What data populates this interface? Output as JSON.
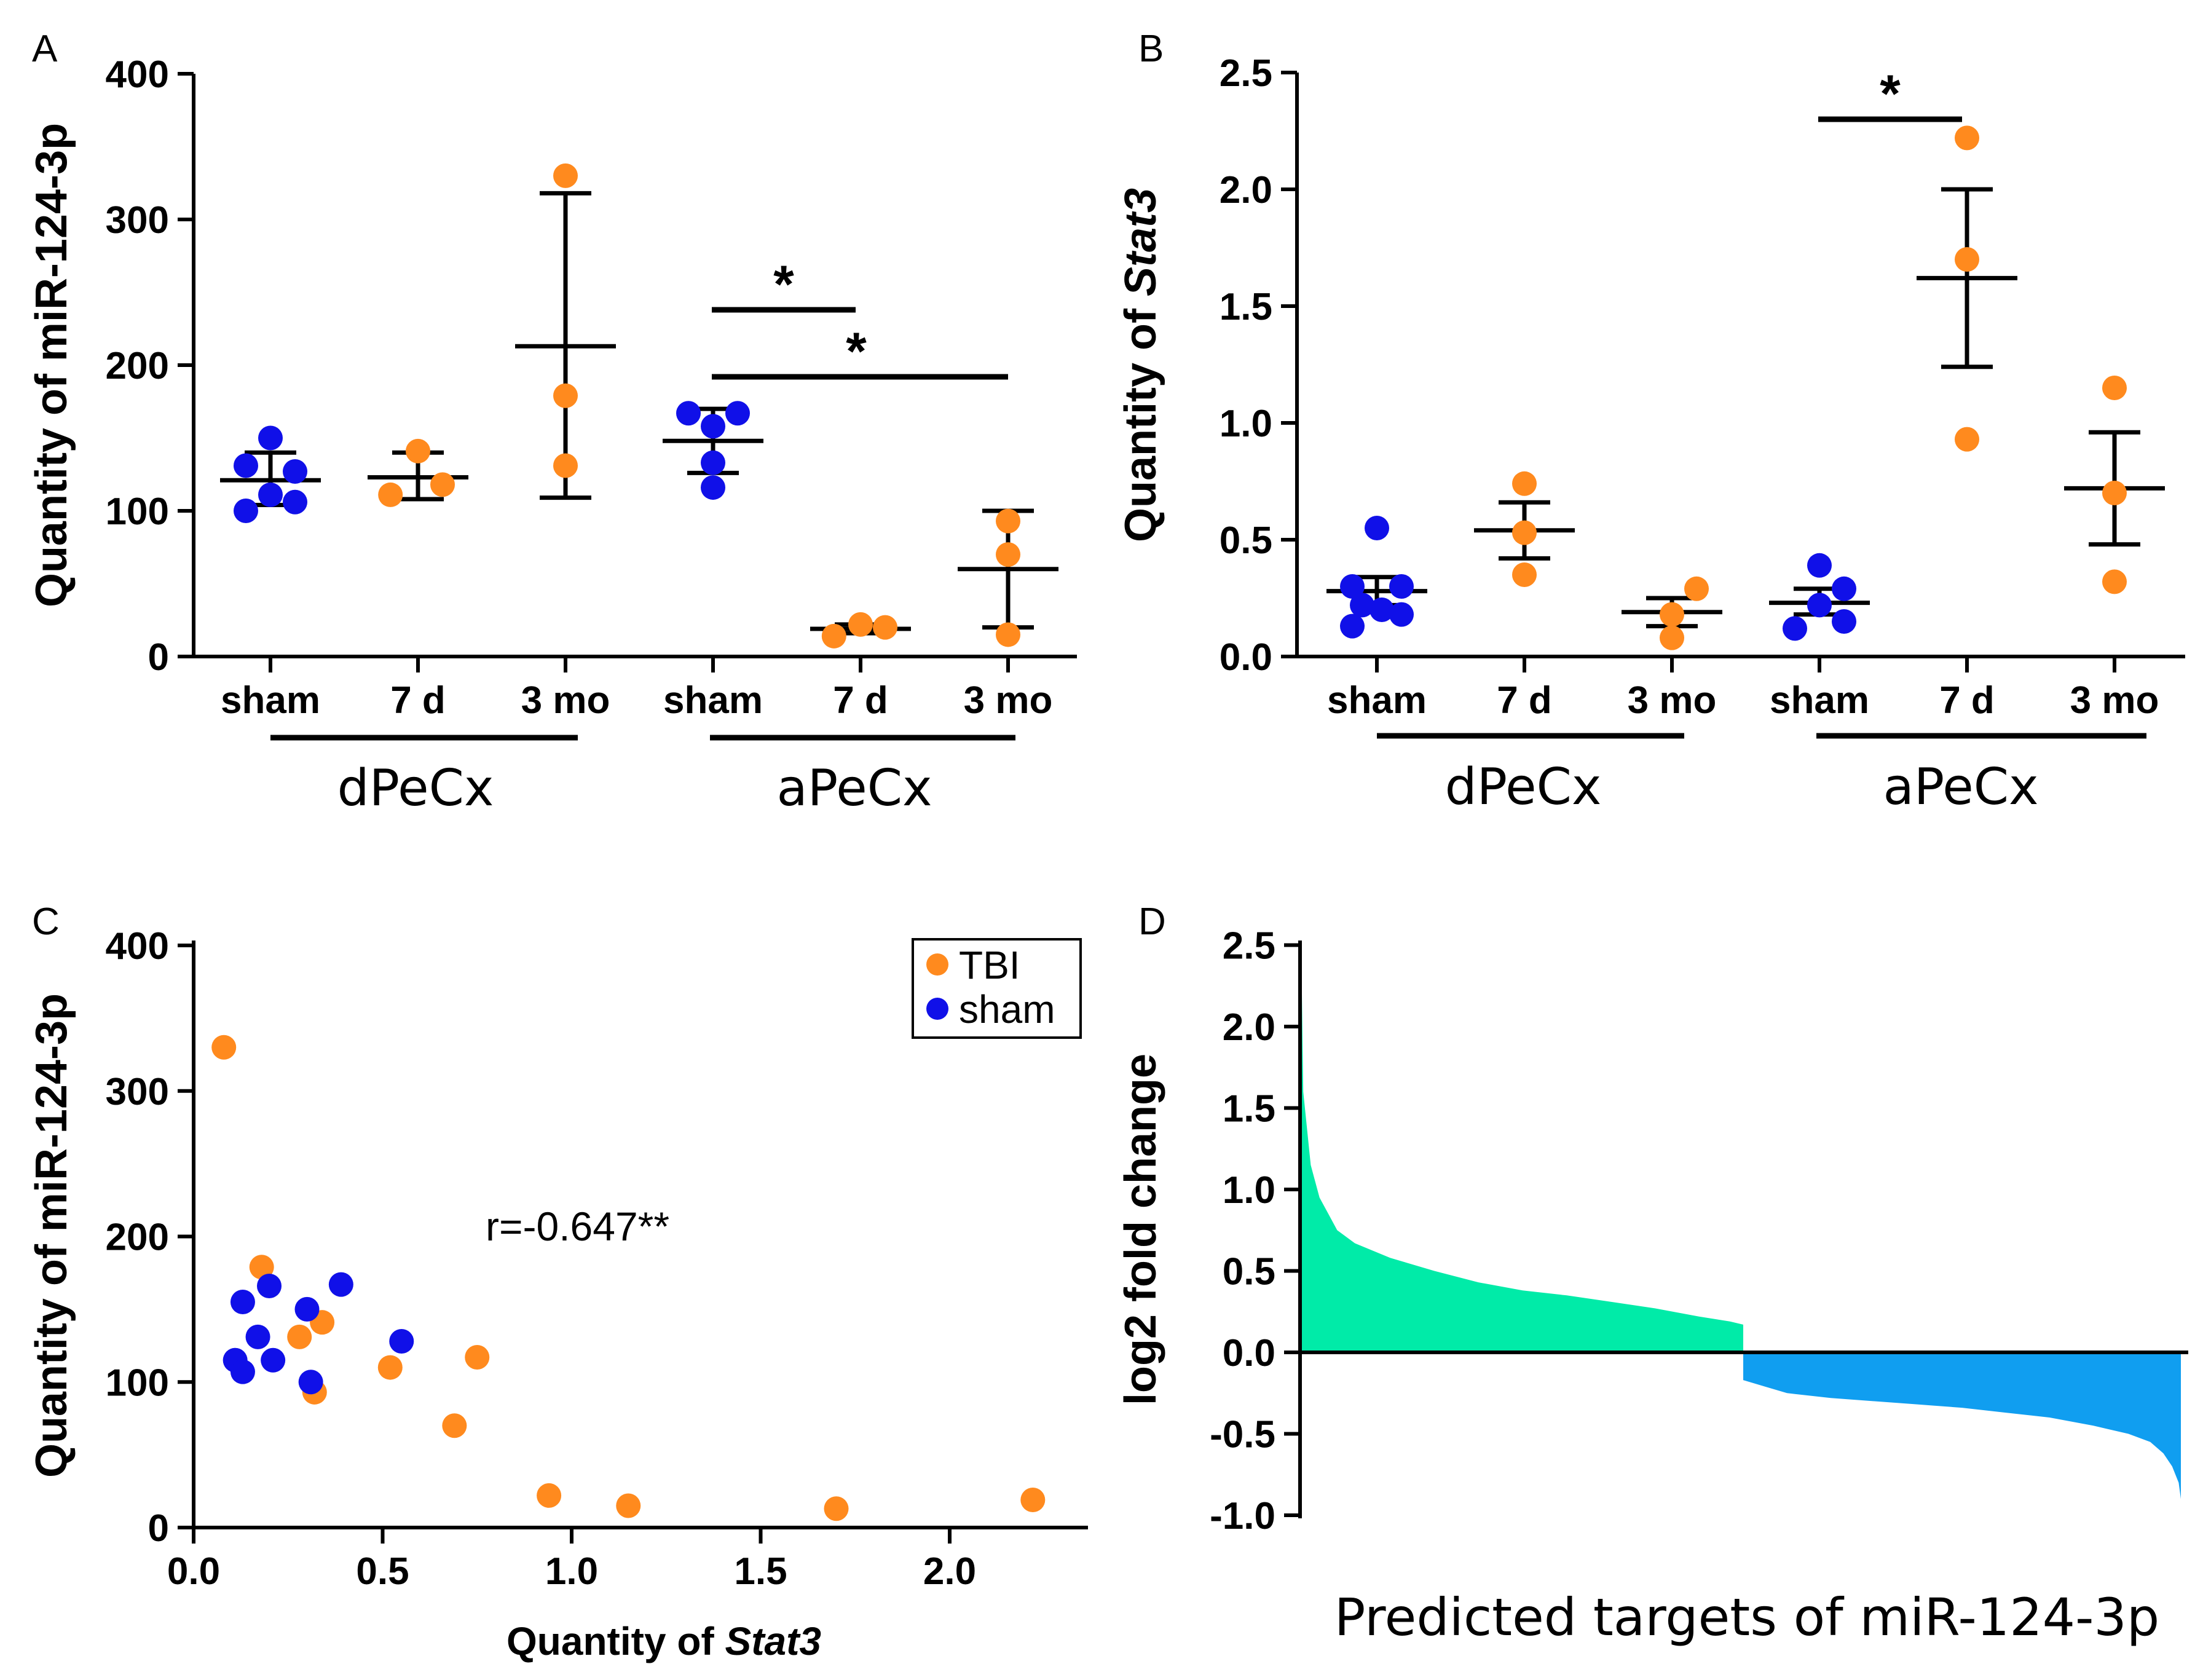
{
  "colors": {
    "tbi": "#FF8A1E",
    "sham": "#1010E8",
    "up": "#00EBA8",
    "down": "#109EF0"
  },
  "chart_data": [
    {
      "panel": "A",
      "type": "scatter",
      "ylabel": "Quantity of miR-124-3p",
      "ylim": [
        0,
        400
      ],
      "yticks": [
        0,
        100,
        200,
        300,
        400
      ],
      "categories": [
        "sham",
        "7 d",
        "3 mo",
        "sham",
        "7 d",
        "3 mo"
      ],
      "groups": [
        "dPeCx",
        "aPeCx"
      ],
      "series": [
        {
          "name": "sham",
          "cat": 0,
          "points": [
            [
              -0.25,
              100
            ],
            [
              -0.25,
              131
            ],
            [
              0,
              150
            ],
            [
              0,
              111
            ],
            [
              0.25,
              106
            ],
            [
              0.25,
              127
            ]
          ],
          "mean": 121,
          "lo": 104,
          "hi": 140
        },
        {
          "name": "7 d",
          "cat": 1,
          "points": [
            [
              -0.28,
              111
            ],
            [
              0,
              141
            ],
            [
              0.25,
              118
            ]
          ],
          "mean": 123,
          "lo": 108,
          "hi": 140
        },
        {
          "name": "3 mo",
          "cat": 2,
          "points": [
            [
              0,
              330
            ],
            [
              0,
              179
            ],
            [
              0,
              131
            ]
          ],
          "mean": 213,
          "lo": 109,
          "hi": 318
        },
        {
          "name": "sham",
          "cat": 3,
          "points": [
            [
              -0.25,
              167
            ],
            [
              0,
              158
            ],
            [
              0.25,
              167
            ],
            [
              0,
              116
            ],
            [
              0,
              133
            ]
          ],
          "mean": 148,
          "lo": 126,
          "hi": 170
        },
        {
          "name": "7 d",
          "cat": 4,
          "points": [
            [
              -0.27,
              14
            ],
            [
              0,
              22
            ],
            [
              0.25,
              20
            ]
          ],
          "mean": 19,
          "lo": 16,
          "hi": 22
        },
        {
          "name": "3 mo",
          "cat": 5,
          "points": [
            [
              0,
              93
            ],
            [
              0,
              70
            ],
            [
              0,
              15
            ]
          ],
          "mean": 60,
          "lo": 20,
          "hi": 100
        }
      ],
      "significance": [
        {
          "from": 3,
          "to": 4,
          "y": 238,
          "label": "*"
        },
        {
          "from": 3,
          "to": 5,
          "y": 192,
          "label": "*"
        }
      ]
    },
    {
      "panel": "B",
      "type": "scatter",
      "ylabel": "Quantity of Stat3",
      "ylim": [
        0,
        2.5
      ],
      "yticks": [
        0.0,
        0.5,
        1.0,
        1.5,
        2.0,
        2.5
      ],
      "categories": [
        "sham",
        "7 d",
        "3 mo",
        "sham",
        "7 d",
        "3 mo"
      ],
      "groups": [
        "dPeCx",
        "aPeCx"
      ],
      "series": [
        {
          "name": "sham",
          "cat": 0,
          "points": [
            [
              0,
              0.55
            ],
            [
              -0.25,
              0.3
            ],
            [
              0.25,
              0.3
            ],
            [
              -0.15,
              0.22
            ],
            [
              0.05,
              0.2
            ],
            [
              -0.25,
              0.13
            ],
            [
              0.25,
              0.18
            ]
          ],
          "mean": 0.28,
          "lo": 0.22,
          "hi": 0.34
        },
        {
          "name": "7 d",
          "cat": 1,
          "points": [
            [
              0,
              0.74
            ],
            [
              0,
              0.53
            ],
            [
              0,
              0.35
            ]
          ],
          "mean": 0.54,
          "lo": 0.42,
          "hi": 0.66
        },
        {
          "name": "3 mo",
          "cat": 2,
          "points": [
            [
              0.25,
              0.29
            ],
            [
              0,
              0.18
            ],
            [
              0,
              0.08
            ]
          ],
          "mean": 0.19,
          "lo": 0.13,
          "hi": 0.25
        },
        {
          "name": "sham",
          "cat": 3,
          "points": [
            [
              0,
              0.39
            ],
            [
              -0.25,
              0.12
            ],
            [
              0.25,
              0.29
            ],
            [
              0.25,
              0.15
            ],
            [
              0,
              0.22
            ]
          ],
          "mean": 0.23,
          "lo": 0.18,
          "hi": 0.29
        },
        {
          "name": "7 d",
          "cat": 4,
          "points": [
            [
              0,
              2.22
            ],
            [
              0,
              1.7
            ],
            [
              0,
              0.93
            ]
          ],
          "mean": 1.62,
          "lo": 1.24,
          "hi": 2.0
        },
        {
          "name": "3 mo",
          "cat": 5,
          "points": [
            [
              0,
              1.15
            ],
            [
              0,
              0.7
            ],
            [
              0,
              0.32
            ]
          ],
          "mean": 0.72,
          "lo": 0.48,
          "hi": 0.96
        }
      ],
      "significance": [
        {
          "from": 3,
          "to": 4,
          "y": 2.3,
          "label": "*"
        }
      ]
    },
    {
      "panel": "C",
      "type": "scatter",
      "xlabel": "Quantity of Stat3",
      "ylabel": "Quantity of miR-124-3p",
      "xlim": [
        0,
        2.4
      ],
      "ylim": [
        0,
        400
      ],
      "xticks": [
        0.0,
        0.5,
        1.0,
        1.5,
        2.0
      ],
      "yticks": [
        0,
        100,
        200,
        300,
        400
      ],
      "annotation": "r=-0.647**",
      "legend": [
        "TBI",
        "sham"
      ],
      "series": [
        {
          "name": "TBI",
          "points": [
            [
              0.08,
              330
            ],
            [
              0.18,
              179
            ],
            [
              0.28,
              131
            ],
            [
              0.34,
              141
            ],
            [
              0.32,
              93
            ],
            [
              0.52,
              110
            ],
            [
              0.69,
              70
            ],
            [
              0.75,
              117
            ],
            [
              0.94,
              22
            ],
            [
              1.15,
              15
            ],
            [
              1.7,
              13
            ],
            [
              2.22,
              19
            ]
          ]
        },
        {
          "name": "sham",
          "points": [
            [
              0.13,
              155
            ],
            [
              0.2,
              166
            ],
            [
              0.39,
              167
            ],
            [
              0.17,
              131
            ],
            [
              0.3,
              150
            ],
            [
              0.11,
              115
            ],
            [
              0.13,
              107
            ],
            [
              0.21,
              115
            ],
            [
              0.31,
              100
            ],
            [
              0.55,
              128
            ]
          ]
        }
      ]
    },
    {
      "panel": "D",
      "type": "bar",
      "title": "Predicted targets of miR-124-3p",
      "ylabel": "log2 fold change",
      "ylim": [
        -1.0,
        2.5
      ],
      "yticks": [
        -1.0,
        -0.5,
        0.0,
        0.5,
        1.0,
        1.5,
        2.0,
        2.5
      ],
      "up_profile": [
        [
          0,
          2.2
        ],
        [
          0.003,
          1.6
        ],
        [
          0.02,
          1.15
        ],
        [
          0.04,
          0.95
        ],
        [
          0.06,
          0.85
        ],
        [
          0.08,
          0.75
        ],
        [
          0.12,
          0.67
        ],
        [
          0.2,
          0.58
        ],
        [
          0.3,
          0.5
        ],
        [
          0.4,
          0.43
        ],
        [
          0.5,
          0.38
        ],
        [
          0.6,
          0.35
        ],
        [
          0.7,
          0.31
        ],
        [
          0.8,
          0.27
        ],
        [
          0.9,
          0.22
        ],
        [
          0.97,
          0.19
        ],
        [
          1.0,
          0.17
        ]
      ],
      "down_profile": [
        [
          0,
          -0.17
        ],
        [
          0.05,
          -0.21
        ],
        [
          0.1,
          -0.25
        ],
        [
          0.2,
          -0.28
        ],
        [
          0.3,
          -0.3
        ],
        [
          0.4,
          -0.32
        ],
        [
          0.5,
          -0.34
        ],
        [
          0.6,
          -0.37
        ],
        [
          0.7,
          -0.4
        ],
        [
          0.8,
          -0.45
        ],
        [
          0.88,
          -0.5
        ],
        [
          0.93,
          -0.55
        ],
        [
          0.96,
          -0.62
        ],
        [
          0.98,
          -0.7
        ],
        [
          0.995,
          -0.8
        ],
        [
          1.0,
          -0.9
        ]
      ]
    }
  ]
}
